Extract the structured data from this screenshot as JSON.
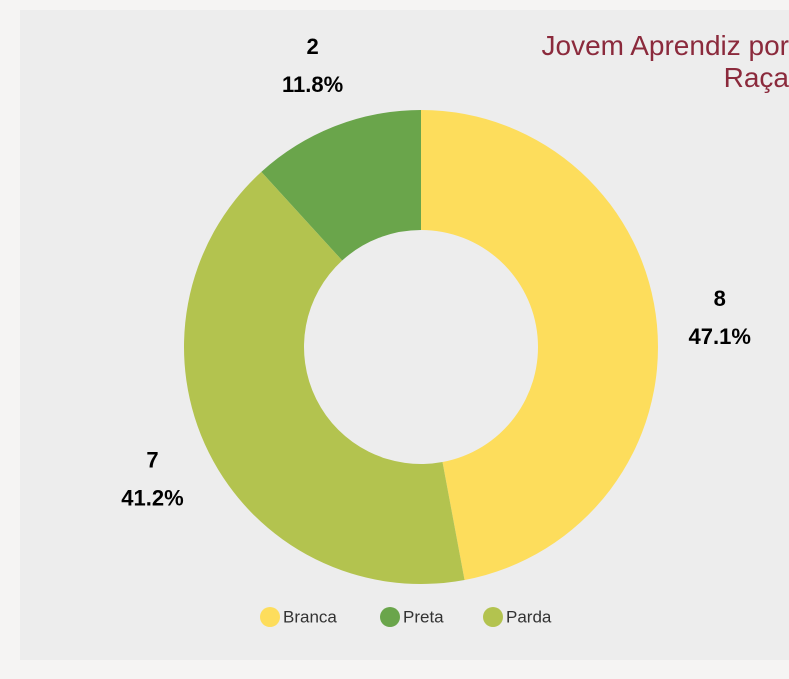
{
  "chart_data": {
    "type": "donut",
    "title": "Jovem Aprendiz por Raça",
    "categories": [
      "Branca",
      "Preta",
      "Parda"
    ],
    "values": [
      8,
      2,
      7
    ],
    "percentages": [
      47.1,
      11.8,
      41.2
    ],
    "percentage_labels": [
      "47.1%",
      "11.8%",
      "41.2%"
    ],
    "colors": [
      "#fddd5c",
      "#6aa54b",
      "#b3c34f"
    ],
    "legend": "bottom"
  }
}
